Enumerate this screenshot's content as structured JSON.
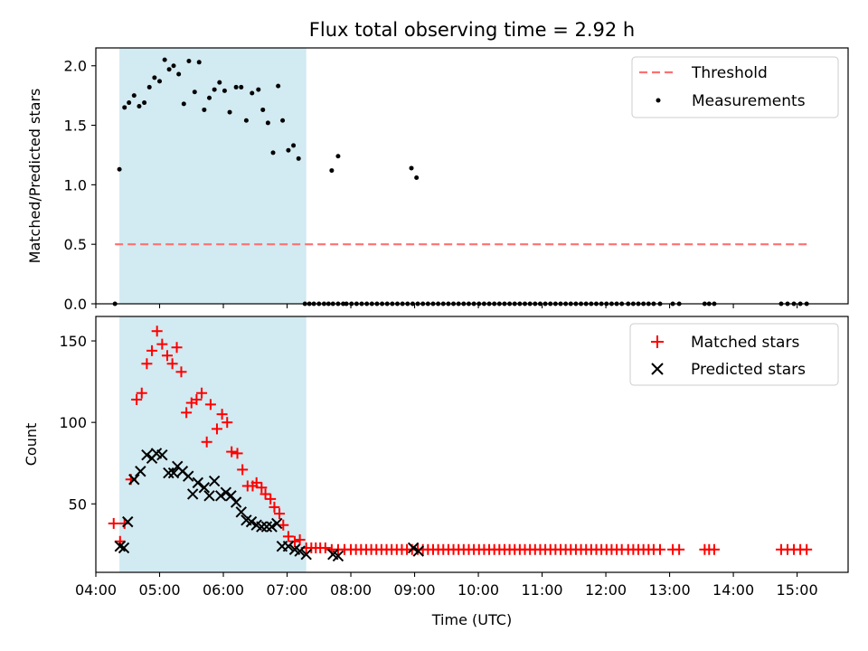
{
  "chart_data": [
    {
      "type": "scatter",
      "title": "Flux total observing time = 2.92 h",
      "xlabel": "",
      "ylabel": "Matched/Predicted stars",
      "xlim": [
        4.0,
        15.8
      ],
      "ylim": [
        0.0,
        2.15
      ],
      "yticks": [
        0.0,
        0.5,
        1.0,
        1.5,
        2.0
      ],
      "ytick_labels": [
        "0.0",
        "0.5",
        "1.0",
        "1.5",
        "2.0"
      ],
      "shaded_span": {
        "x0": 4.37,
        "x1": 7.3,
        "color": "#add8e6"
      },
      "threshold": {
        "name": "Threshold",
        "value": 0.5,
        "x0": 4.3,
        "x1": 15.2,
        "color": "#ff7070"
      },
      "measurements": {
        "name": "Measurements",
        "color": "#000000",
        "x": [
          4.3,
          4.37,
          4.45,
          4.52,
          4.6,
          4.68,
          4.76,
          4.84,
          4.92,
          5.0,
          5.08,
          5.15,
          5.22,
          5.3,
          5.38,
          5.46,
          5.55,
          5.62,
          5.7,
          5.78,
          5.86,
          5.94,
          6.02,
          6.1,
          6.2,
          6.28,
          6.36,
          6.45,
          6.55,
          6.62,
          6.7,
          6.78,
          6.86,
          6.93,
          7.02,
          7.1,
          7.18,
          7.28,
          7.35,
          7.42,
          7.5,
          7.58,
          7.65,
          7.72,
          7.8,
          7.88,
          7.93,
          8.01,
          8.09,
          8.17,
          8.25,
          8.33,
          8.41,
          8.49,
          8.57,
          8.65,
          8.73,
          8.81,
          8.89,
          8.97,
          9.05,
          9.13,
          9.21,
          9.29,
          9.37,
          9.45,
          9.53,
          9.61,
          9.69,
          9.77,
          9.85,
          9.93,
          10.01,
          10.09,
          10.17,
          10.25,
          10.33,
          10.41,
          10.49,
          10.57,
          10.65,
          10.73,
          10.81,
          10.89,
          10.97,
          11.05,
          11.13,
          11.21,
          11.29,
          11.37,
          11.45,
          11.53,
          11.61,
          11.69,
          11.77,
          11.85,
          11.93,
          12.01,
          12.09,
          12.17,
          12.25,
          12.35,
          12.43,
          12.51,
          12.59,
          12.67,
          12.75,
          12.85,
          13.05,
          13.15,
          13.55,
          13.62,
          13.7,
          14.75,
          14.85,
          14.95,
          15.05,
          15.15,
          7.7,
          7.8,
          8.95,
          9.03
        ],
        "y": [
          0.0,
          1.13,
          1.65,
          1.69,
          1.75,
          1.66,
          1.69,
          1.82,
          1.9,
          1.87,
          2.05,
          1.97,
          2.0,
          1.93,
          1.68,
          2.04,
          1.78,
          2.03,
          1.63,
          1.73,
          1.8,
          1.86,
          1.79,
          1.61,
          1.82,
          1.82,
          1.54,
          1.77,
          1.8,
          1.63,
          1.52,
          1.27,
          1.83,
          1.54,
          1.29,
          1.33,
          1.22,
          0.0,
          0.0,
          0.0,
          0.0,
          0.0,
          0.0,
          0.0,
          0.0,
          0.0,
          0.0,
          0.0,
          0.0,
          0.0,
          0.0,
          0.0,
          0.0,
          0.0,
          0.0,
          0.0,
          0.0,
          0.0,
          0.0,
          0.0,
          0.0,
          0.0,
          0.0,
          0.0,
          0.0,
          0.0,
          0.0,
          0.0,
          0.0,
          0.0,
          0.0,
          0.0,
          0.0,
          0.0,
          0.0,
          0.0,
          0.0,
          0.0,
          0.0,
          0.0,
          0.0,
          0.0,
          0.0,
          0.0,
          0.0,
          0.0,
          0.0,
          0.0,
          0.0,
          0.0,
          0.0,
          0.0,
          0.0,
          0.0,
          0.0,
          0.0,
          0.0,
          0.0,
          0.0,
          0.0,
          0.0,
          0.0,
          0.0,
          0.0,
          0.0,
          0.0,
          0.0,
          0.0,
          0.0,
          0.0,
          0.0,
          0.0,
          0.0,
          0.0,
          0.0,
          0.0,
          0.0,
          0.0,
          1.12,
          1.24,
          1.14,
          1.06
        ]
      },
      "legend": [
        "Threshold",
        "Measurements"
      ],
      "legend_position": "top-right"
    },
    {
      "type": "scatter",
      "title": "",
      "xlabel": "Time (UTC)",
      "ylabel": "Count",
      "xlim": [
        4.0,
        15.8
      ],
      "ylim": [
        8,
        165
      ],
      "yticks": [
        50,
        100,
        150
      ],
      "ytick_labels": [
        "50",
        "100",
        "150"
      ],
      "xticks": [
        4,
        5,
        6,
        7,
        8,
        9,
        10,
        11,
        12,
        13,
        14,
        15
      ],
      "xtick_labels": [
        "04:00",
        "05:00",
        "06:00",
        "07:00",
        "08:00",
        "09:00",
        "10:00",
        "11:00",
        "12:00",
        "13:00",
        "14:00",
        "15:00"
      ],
      "shaded_span": {
        "x0": 4.37,
        "x1": 7.3,
        "color": "#add8e6"
      },
      "series": [
        {
          "name": "Matched stars",
          "marker": "plus",
          "color": "#ff0000",
          "x": [
            4.28,
            4.38,
            4.45,
            4.55,
            4.64,
            4.72,
            4.8,
            4.88,
            4.96,
            5.04,
            5.12,
            5.2,
            5.27,
            5.34,
            5.42,
            5.5,
            5.58,
            5.66,
            5.74,
            5.8,
            5.9,
            5.98,
            6.06,
            6.13,
            6.22,
            6.3,
            6.38,
            6.46,
            6.52,
            6.6,
            6.66,
            6.74,
            6.8,
            6.88,
            6.94,
            7.02,
            7.12,
            7.2,
            7.3,
            7.38,
            7.45,
            7.52,
            7.6,
            7.7,
            7.8,
            7.9,
            8.0,
            8.08,
            8.16,
            8.24,
            8.32,
            8.4,
            8.48,
            8.56,
            8.64,
            8.72,
            8.8,
            8.88,
            8.96,
            9.05,
            9.13,
            9.21,
            9.29,
            9.37,
            9.45,
            9.53,
            9.61,
            9.69,
            9.77,
            9.85,
            9.93,
            10.01,
            10.09,
            10.17,
            10.25,
            10.33,
            10.41,
            10.49,
            10.57,
            10.65,
            10.73,
            10.81,
            10.89,
            10.97,
            11.05,
            11.13,
            11.21,
            11.29,
            11.37,
            11.45,
            11.53,
            11.61,
            11.69,
            11.77,
            11.85,
            11.93,
            12.01,
            12.09,
            12.17,
            12.25,
            12.35,
            12.43,
            12.51,
            12.59,
            12.67,
            12.75,
            12.85,
            13.05,
            13.15,
            13.55,
            13.62,
            13.7,
            14.75,
            14.85,
            14.95,
            15.05,
            15.15
          ],
          "y": [
            38,
            27,
            38,
            65,
            114,
            118,
            136,
            144,
            156,
            148,
            141,
            136,
            146,
            131,
            106,
            112,
            114,
            118,
            88,
            111,
            96,
            105,
            100,
            82,
            81,
            71,
            61,
            61,
            63,
            60,
            56,
            53,
            48,
            44,
            37,
            30,
            27,
            28,
            23,
            23,
            23,
            23,
            23,
            22,
            22,
            22,
            22,
            22,
            22,
            22,
            22,
            22,
            22,
            22,
            22,
            22,
            22,
            22,
            22,
            22,
            22,
            22,
            22,
            22,
            22,
            22,
            22,
            22,
            22,
            22,
            22,
            22,
            22,
            22,
            22,
            22,
            22,
            22,
            22,
            22,
            22,
            22,
            22,
            22,
            22,
            22,
            22,
            22,
            22,
            22,
            22,
            22,
            22,
            22,
            22,
            22,
            22,
            22,
            22,
            22,
            22,
            22,
            22,
            22,
            22,
            22,
            22,
            22,
            22,
            22,
            22,
            22,
            22,
            22,
            22,
            22,
            22
          ]
        },
        {
          "name": "Predicted stars",
          "marker": "x",
          "color": "#000000",
          "x": [
            4.38,
            4.44,
            4.5,
            4.6,
            4.7,
            4.8,
            4.88,
            4.95,
            5.04,
            5.14,
            5.22,
            5.28,
            5.36,
            5.45,
            5.52,
            5.6,
            5.7,
            5.78,
            5.86,
            5.96,
            6.04,
            6.12,
            6.2,
            6.28,
            6.36,
            6.44,
            6.52,
            6.6,
            6.68,
            6.76,
            6.84,
            6.92,
            7.02,
            7.12,
            7.2,
            7.3,
            7.72,
            7.8,
            8.98,
            9.06
          ],
          "y": [
            24,
            23,
            39,
            65,
            70,
            80,
            78,
            81,
            80,
            69,
            69,
            73,
            70,
            67,
            56,
            63,
            60,
            55,
            64,
            55,
            57,
            55,
            51,
            45,
            40,
            39,
            37,
            36,
            36,
            36,
            38,
            24,
            24,
            22,
            21,
            19,
            19,
            18,
            23,
            21
          ]
        }
      ],
      "legend": [
        "Matched stars",
        "Predicted stars"
      ],
      "legend_position": "top-right"
    }
  ]
}
